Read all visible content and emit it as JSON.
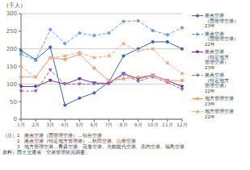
{
  "chart_data": {
    "type": "line",
    "ylabel": "（千人）",
    "categories": [
      "1月",
      "2月",
      "3月",
      "4月",
      "5月",
      "6月",
      "7月",
      "8月",
      "9月",
      "10月",
      "11月",
      "12月"
    ],
    "series": [
      {
        "name": "拠点空港\n（国管理空港）\n23年",
        "color": "#3366cc",
        "line_style": "solid",
        "marker": "circle",
        "values": [
          195,
          170,
          205,
          40,
          60,
          75,
          105,
          180,
          200,
          220,
          220,
          200
        ]
      },
      {
        "name": "拠点空港\n（国管理空港）\n22年",
        "color": "#6699ff",
        "line_style": "dashed",
        "marker": "circle",
        "values": [
          185,
          168,
          255,
          215,
          245,
          238,
          245,
          278,
          280,
          252,
          240,
          260
        ]
      },
      {
        "name": "拠点空港\n（特定地方\n管理空港）\n23年",
        "color": "#7030a0",
        "line_style": "solid",
        "marker": "triangle-down",
        "values": [
          93,
          93,
          110,
          100,
          115,
          103,
          102,
          130,
          115,
          125,
          110,
          93
        ]
      },
      {
        "name": "拠点空港\n（特定地方\n管理空港）\n22年",
        "color": "#9966cc",
        "line_style": "dashed",
        "marker": "triangle-down",
        "values": [
          80,
          80,
          140,
          100,
          100,
          100,
          100,
          127,
          108,
          120,
          105,
          85
        ]
      },
      {
        "name": "地方管理空港\n23年",
        "color": "#ff9966",
        "line_style": "solid",
        "marker": "square",
        "values": [
          120,
          120,
          175,
          170,
          185,
          145,
          110,
          115,
          120,
          125,
          110,
          110
        ]
      },
      {
        "name": "地方管理空港\n22年",
        "color": "#ffaa77",
        "line_style": "dashed",
        "marker": "square",
        "values": [
          150,
          120,
          175,
          180,
          190,
          175,
          180,
          215,
          195,
          200,
          160,
          130
        ]
      }
    ],
    "ylim": [
      0,
      300
    ],
    "yticks": [
      0,
      50,
      100,
      150,
      200,
      250,
      300
    ],
    "grid": true,
    "legend": "right",
    "annotations": [
      "（注）1　拠点空港（国管理空港）…仙台空港",
      "　　　2　拠点空港（特定地方管理港）…秋田空港、山形空港",
      "　　　3　地方管理空港…青森空港、花巻空港、大館能代空港、庄内空港、福島空港",
      "資料）国土交通省「空港管理状況調書」"
    ]
  }
}
